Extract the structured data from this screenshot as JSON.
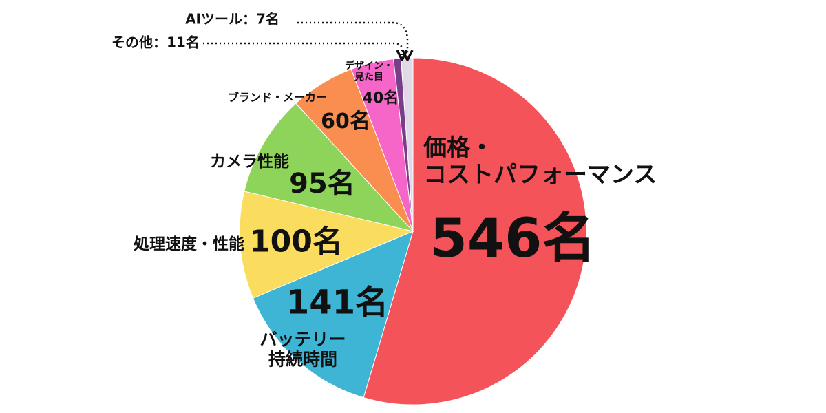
{
  "chart_data": {
    "type": "pie",
    "categories": [
      "価格・\nコストパフォーマンス",
      "バッテリー\n持続時間",
      "処理速度・性能",
      "カメラ性能",
      "ブランド・メーカー",
      "デザイン・\n見た目",
      "AIツール：",
      "その他："
    ],
    "values": [
      546,
      141,
      100,
      95,
      60,
      40,
      7,
      11
    ],
    "value_labels": [
      "546名",
      "141名",
      "100名",
      "95名",
      "60名",
      "40名",
      "7名",
      "11名"
    ],
    "colors": [
      "#f4535a",
      "#3fb5d5",
      "#fadc5e",
      "#8ed45a",
      "#f98e50",
      "#f666c8",
      "#7a3d8a",
      "#e2d9e6"
    ]
  }
}
